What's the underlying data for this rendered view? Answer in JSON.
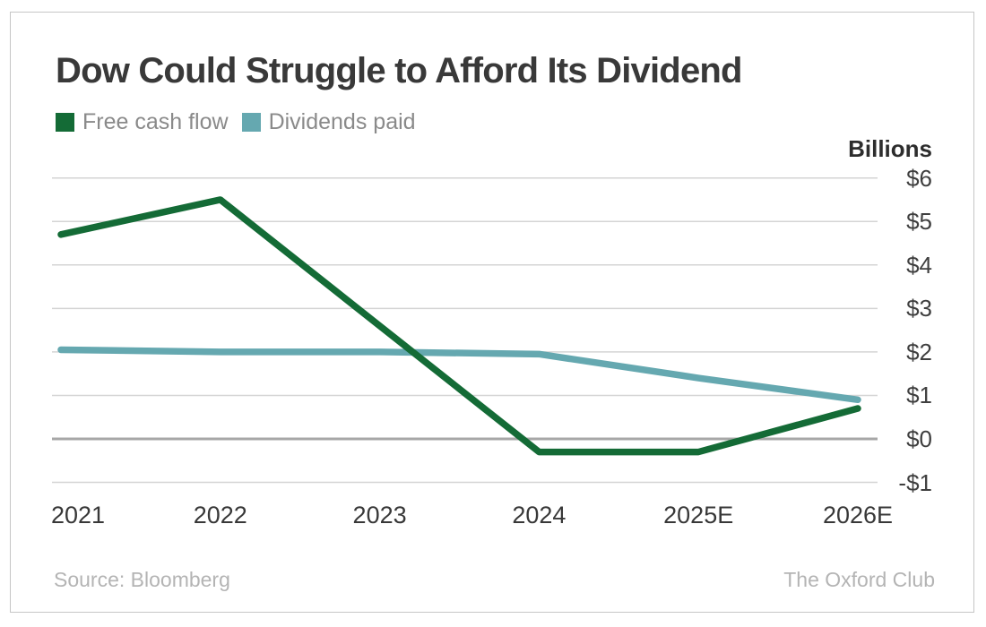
{
  "title": "Dow Could Struggle to Afford Its Dividend",
  "legend": {
    "items": [
      {
        "label": "Free cash flow",
        "color": "#146b36"
      },
      {
        "label": "Dividends paid",
        "color": "#65a8b0"
      }
    ]
  },
  "axis": {
    "unit_label": "Billions"
  },
  "footer": {
    "source": "Source: Bloomberg",
    "credit": "The Oxford Club"
  },
  "colors": {
    "free_cash_flow": "#146b36",
    "dividends_paid": "#65a8b0",
    "gridline": "#d4d4d4",
    "zero_line": "#a7a7a7"
  },
  "chart_data": {
    "type": "line",
    "title": "Dow Could Struggle to Afford Its Dividend",
    "categories": [
      "2021",
      "2022",
      "2023",
      "2024",
      "2025E",
      "2026E"
    ],
    "series": [
      {
        "name": "Free cash flow",
        "color": "#146b36",
        "values": [
          4.7,
          5.5,
          2.6,
          -0.3,
          -0.3,
          0.7
        ]
      },
      {
        "name": "Dividends paid",
        "color": "#65a8b0",
        "values": [
          2.05,
          2.0,
          2.0,
          1.95,
          1.4,
          0.9
        ]
      }
    ],
    "ylabel": "Billions",
    "ylim": [
      -1,
      6
    ],
    "yticks": [
      6,
      5,
      4,
      3,
      2,
      1,
      0,
      -1
    ],
    "ytick_labels": [
      "$6",
      "$5",
      "$4",
      "$3",
      "$2",
      "$1",
      "$0",
      "-$1"
    ],
    "grid": true,
    "zero_line_emphasized": true,
    "legend_position": "top-left"
  }
}
